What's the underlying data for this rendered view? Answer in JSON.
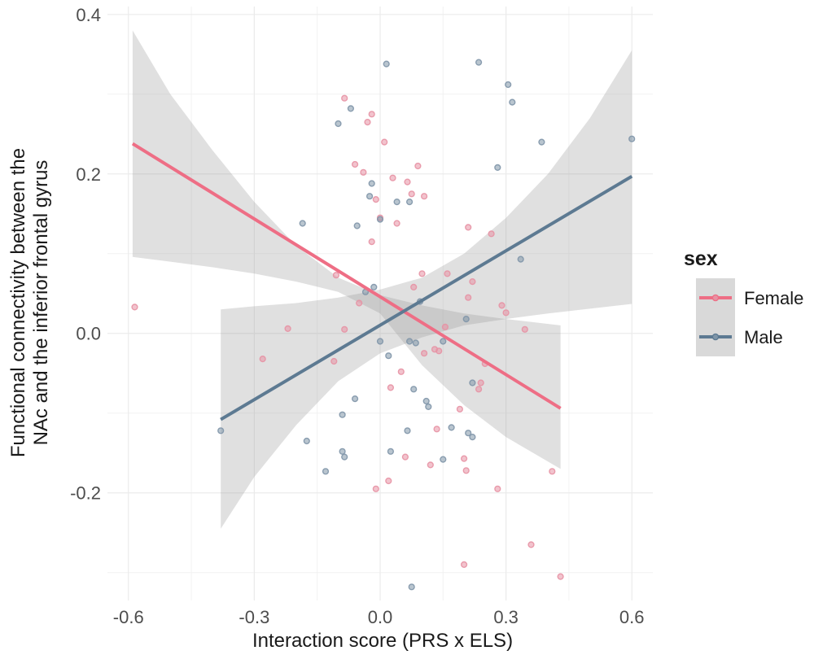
{
  "chart_data": {
    "type": "scatter",
    "title": "",
    "xlabel": "Interaction score (PRS x ELS)",
    "ylabel_lines": [
      "Functional connectivity between the",
      "NAc and the inferior frontal gyrus"
    ],
    "xlim": [
      -0.65,
      0.65
    ],
    "ylim": [
      -0.335,
      0.41
    ],
    "x_ticks": [
      -0.6,
      -0.3,
      0.0,
      0.3,
      0.6
    ],
    "x_tick_labels": [
      "-0.6",
      "-0.3",
      "0.0",
      "0.3",
      "0.6"
    ],
    "y_ticks": [
      -0.2,
      0.0,
      0.2,
      0.4
    ],
    "y_tick_labels": [
      "-0.2",
      "0.0",
      "0.2",
      "0.4"
    ],
    "grid": true,
    "legend": {
      "title": "sex",
      "position": "right"
    },
    "series": [
      {
        "name": "Female",
        "color": "#ee6e85",
        "point_color": "#e792a4",
        "band_x": [
          -0.59,
          -0.5,
          -0.4,
          -0.3,
          -0.2,
          -0.1,
          0.0,
          0.1,
          0.2,
          0.3,
          0.43
        ],
        "band_upper": [
          0.38,
          0.3,
          0.23,
          0.165,
          0.11,
          0.07,
          0.048,
          0.035,
          0.025,
          0.018,
          0.01
        ],
        "band_lower": [
          0.096,
          0.09,
          0.083,
          0.075,
          0.065,
          0.052,
          0.025,
          -0.04,
          -0.09,
          -0.13,
          -0.17
        ],
        "fit_x": [
          -0.59,
          0.43
        ],
        "fit_y": [
          0.238,
          -0.094
        ],
        "points": [
          [
            -0.585,
            0.033
          ],
          [
            -0.28,
            -0.032
          ],
          [
            -0.22,
            0.006
          ],
          [
            -0.11,
            -0.035
          ],
          [
            -0.105,
            0.073
          ],
          [
            -0.085,
            0.005
          ],
          [
            -0.085,
            0.295
          ],
          [
            -0.06,
            0.212
          ],
          [
            -0.05,
            0.038
          ],
          [
            -0.04,
            0.202
          ],
          [
            -0.03,
            0.265
          ],
          [
            -0.02,
            0.275
          ],
          [
            -0.02,
            0.115
          ],
          [
            -0.01,
            0.168
          ],
          [
            -0.01,
            -0.195
          ],
          [
            0.0,
            0.145
          ],
          [
            0.01,
            0.24
          ],
          [
            0.02,
            -0.185
          ],
          [
            0.025,
            -0.068
          ],
          [
            0.03,
            0.195
          ],
          [
            0.04,
            0.138
          ],
          [
            0.05,
            -0.048
          ],
          [
            0.06,
            -0.155
          ],
          [
            0.065,
            0.19
          ],
          [
            0.075,
            0.175
          ],
          [
            0.08,
            0.058
          ],
          [
            0.09,
            0.21
          ],
          [
            0.1,
            0.075
          ],
          [
            0.105,
            0.172
          ],
          [
            0.105,
            -0.025
          ],
          [
            0.12,
            -0.165
          ],
          [
            0.13,
            -0.02
          ],
          [
            0.135,
            -0.12
          ],
          [
            0.14,
            -0.022
          ],
          [
            0.155,
            0.008
          ],
          [
            0.16,
            0.075
          ],
          [
            0.19,
            -0.095
          ],
          [
            0.2,
            -0.29
          ],
          [
            0.2,
            -0.157
          ],
          [
            0.205,
            -0.172
          ],
          [
            0.21,
            0.133
          ],
          [
            0.21,
            0.045
          ],
          [
            0.22,
            0.065
          ],
          [
            0.235,
            -0.07
          ],
          [
            0.24,
            -0.062
          ],
          [
            0.25,
            -0.038
          ],
          [
            0.265,
            0.125
          ],
          [
            0.28,
            -0.195
          ],
          [
            0.29,
            0.035
          ],
          [
            0.3,
            0.026
          ],
          [
            0.345,
            0.005
          ],
          [
            0.36,
            -0.265
          ],
          [
            0.41,
            -0.173
          ],
          [
            0.43,
            -0.305
          ]
        ]
      },
      {
        "name": "Male",
        "color": "#5d7a92",
        "point_color": "#7f95a8",
        "band_x": [
          -0.38,
          -0.3,
          -0.2,
          -0.1,
          0.0,
          0.1,
          0.2,
          0.3,
          0.4,
          0.5,
          0.6
        ],
        "band_upper": [
          0.03,
          0.034,
          0.038,
          0.045,
          0.055,
          0.07,
          0.1,
          0.145,
          0.2,
          0.27,
          0.355
        ],
        "band_lower": [
          -0.245,
          -0.18,
          -0.115,
          -0.06,
          -0.025,
          -0.005,
          0.01,
          0.018,
          0.025,
          0.031,
          0.037
        ],
        "fit_x": [
          -0.38,
          0.6
        ],
        "fit_y": [
          -0.108,
          0.197
        ],
        "points": [
          [
            -0.38,
            -0.122
          ],
          [
            -0.185,
            0.138
          ],
          [
            -0.175,
            -0.135
          ],
          [
            -0.13,
            -0.173
          ],
          [
            -0.1,
            0.263
          ],
          [
            -0.09,
            -0.102
          ],
          [
            -0.09,
            -0.148
          ],
          [
            -0.085,
            -0.155
          ],
          [
            -0.07,
            0.282
          ],
          [
            -0.06,
            -0.082
          ],
          [
            -0.055,
            0.135
          ],
          [
            -0.035,
            0.052
          ],
          [
            -0.025,
            0.172
          ],
          [
            -0.02,
            0.188
          ],
          [
            -0.015,
            0.058
          ],
          [
            0.0,
            0.143
          ],
          [
            0.0,
            -0.01
          ],
          [
            0.015,
            0.338
          ],
          [
            0.02,
            -0.028
          ],
          [
            0.025,
            -0.148
          ],
          [
            0.04,
            0.165
          ],
          [
            0.065,
            -0.122
          ],
          [
            0.07,
            0.165
          ],
          [
            0.07,
            -0.01
          ],
          [
            0.075,
            -0.318
          ],
          [
            0.08,
            -0.07
          ],
          [
            0.085,
            -0.012
          ],
          [
            0.095,
            0.04
          ],
          [
            0.11,
            -0.085
          ],
          [
            0.115,
            -0.092
          ],
          [
            0.15,
            -0.01
          ],
          [
            0.15,
            -0.158
          ],
          [
            0.17,
            -0.118
          ],
          [
            0.205,
            0.018
          ],
          [
            0.21,
            -0.125
          ],
          [
            0.22,
            -0.062
          ],
          [
            0.22,
            -0.13
          ],
          [
            0.235,
            0.34
          ],
          [
            0.28,
            0.208
          ],
          [
            0.305,
            0.312
          ],
          [
            0.315,
            0.29
          ],
          [
            0.335,
            0.093
          ],
          [
            0.385,
            0.24
          ],
          [
            0.6,
            0.244
          ]
        ]
      }
    ]
  }
}
